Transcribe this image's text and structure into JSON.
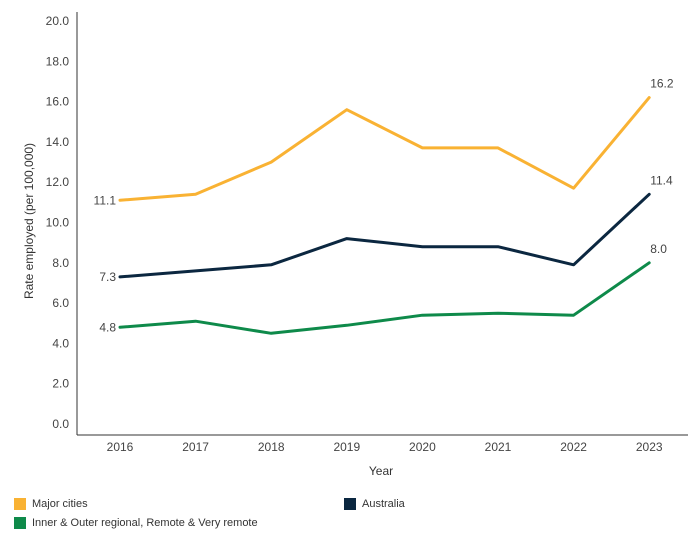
{
  "chart_data": {
    "type": "line",
    "title": "",
    "xlabel": "Year",
    "ylabel": "Rate employed (per 100,000)",
    "ylim": [
      0,
      20
    ],
    "y_ticks": [
      "0.0",
      "2.0",
      "4.0",
      "6.0",
      "8.0",
      "10.0",
      "12.0",
      "14.0",
      "16.0",
      "18.0",
      "20.0"
    ],
    "categories": [
      "2016",
      "2017",
      "2018",
      "2019",
      "2020",
      "2021",
      "2022",
      "2023"
    ],
    "series": [
      {
        "name": "Major cities",
        "color": "#f9b233",
        "values": [
          11.1,
          11.4,
          13.0,
          15.6,
          13.7,
          13.7,
          11.7,
          16.2
        ],
        "label_first": "11.1",
        "label_last": "16.2"
      },
      {
        "name": "Australia",
        "color": "#0b2740",
        "values": [
          7.3,
          7.6,
          7.9,
          9.2,
          8.8,
          8.8,
          7.9,
          11.4
        ],
        "label_first": "7.3",
        "label_last": "11.4"
      },
      {
        "name": "Inner & Outer regional,  Remote & Very remote",
        "color": "#0e8a4a",
        "values": [
          4.8,
          5.1,
          4.5,
          4.9,
          5.4,
          5.5,
          5.4,
          8.0
        ],
        "label_first": "4.8",
        "label_last": "8.0"
      }
    ],
    "legend_position": "bottom"
  }
}
